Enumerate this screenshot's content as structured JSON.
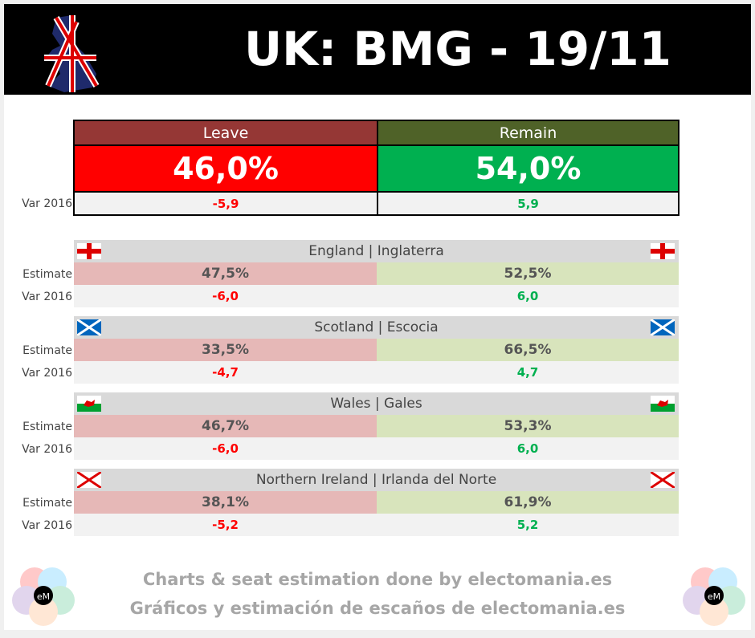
{
  "header": {
    "title": "UK: BMG - 19/11",
    "logo": "uk-map-flag-icon"
  },
  "national": {
    "leave_label": "Leave",
    "remain_label": "Remain",
    "leave_value": "46,0%",
    "remain_value": "54,0%",
    "var_label": "Var 2016",
    "leave_var": "-5,9",
    "remain_var": "5,9"
  },
  "row_labels": {
    "estimate": "Estimate",
    "var": "Var 2016"
  },
  "regions": [
    {
      "name": "England | Inglaterra",
      "flag": "england-flag-icon",
      "leave": "47,5%",
      "remain": "52,5%",
      "leave_var": "-6,0",
      "remain_var": "6,0"
    },
    {
      "name": "Scotland | Escocia",
      "flag": "scotland-flag-icon",
      "leave": "33,5%",
      "remain": "66,5%",
      "leave_var": "-4,7",
      "remain_var": "4,7"
    },
    {
      "name": "Wales | Gales",
      "flag": "wales-flag-icon",
      "leave": "46,7%",
      "remain": "53,3%",
      "leave_var": "-6,0",
      "remain_var": "6,0"
    },
    {
      "name": "Northern Ireland | Irlanda del Norte",
      "flag": "northern-ireland-flag-icon",
      "leave": "38,1%",
      "remain": "61,9%",
      "leave_var": "-5,2",
      "remain_var": "5,2"
    }
  ],
  "footer": {
    "line1": "Charts & seat estimation done by electomania.es",
    "line2": "Gráficos y estimación de escaños de electomania.es",
    "logo_text": "eM"
  },
  "colors": {
    "leave_header": "#953735",
    "remain_header": "#4f6228",
    "leave": "#ff0000",
    "remain": "#00b050",
    "leave_light": "#e6b8b7",
    "remain_light": "#d8e4bc"
  }
}
